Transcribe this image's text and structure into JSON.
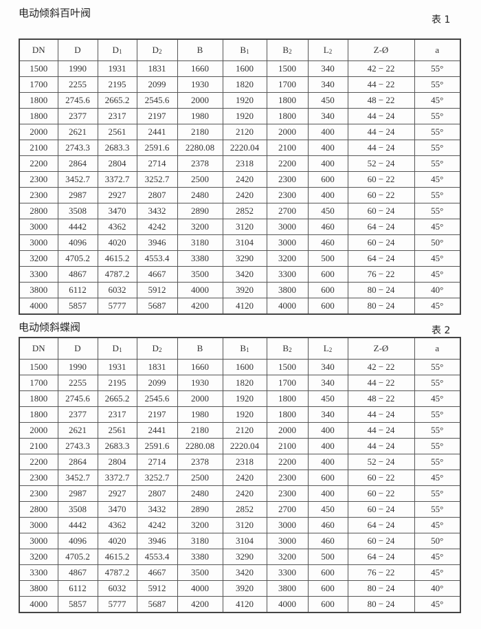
{
  "tables": [
    {
      "title": "电动倾斜百叶阀",
      "tag": "表 1",
      "headers": [
        {
          "base": "DN",
          "sub": ""
        },
        {
          "base": "D",
          "sub": ""
        },
        {
          "base": "D",
          "sub": "1"
        },
        {
          "base": "D",
          "sub": "2"
        },
        {
          "base": "B",
          "sub": ""
        },
        {
          "base": "B",
          "sub": "1"
        },
        {
          "base": "B",
          "sub": "2"
        },
        {
          "base": "L",
          "sub": "2"
        },
        {
          "base": "Z-Ø",
          "sub": ""
        },
        {
          "base": "a",
          "sub": ""
        }
      ],
      "rows": [
        [
          "1500",
          "1990",
          "1931",
          "1831",
          "1660",
          "1600",
          "1500",
          "340",
          "42 − 22",
          "55°"
        ],
        [
          "1700",
          "2255",
          "2195",
          "2099",
          "1930",
          "1820",
          "1700",
          "340",
          "44 − 22",
          "55°"
        ],
        [
          "1800",
          "2745.6",
          "2665.2",
          "2545.6",
          "2000",
          "1920",
          "1800",
          "450",
          "48 − 22",
          "45°"
        ],
        [
          "1800",
          "2377",
          "2317",
          "2197",
          "1980",
          "1920",
          "1800",
          "340",
          "44 − 24",
          "55°"
        ],
        [
          "2000",
          "2621",
          "2561",
          "2441",
          "2180",
          "2120",
          "2000",
          "400",
          "44 − 24",
          "55°"
        ],
        [
          "2100",
          "2743.3",
          "2683.3",
          "2591.6",
          "2280.08",
          "2220.04",
          "2100",
          "400",
          "44 − 24",
          "55°"
        ],
        [
          "2200",
          "2864",
          "2804",
          "2714",
          "2378",
          "2318",
          "2200",
          "400",
          "52 − 24",
          "55°"
        ],
        [
          "2300",
          "3452.7",
          "3372.7",
          "3252.7",
          "2500",
          "2420",
          "2300",
          "600",
          "60 − 22",
          "45°"
        ],
        [
          "2300",
          "2987",
          "2927",
          "2807",
          "2480",
          "2420",
          "2300",
          "400",
          "60 − 22",
          "55°"
        ],
        [
          "2800",
          "3508",
          "3470",
          "3432",
          "2890",
          "2852",
          "2700",
          "450",
          "60 − 24",
          "55°"
        ],
        [
          "3000",
          "4442",
          "4362",
          "4242",
          "3200",
          "3120",
          "3000",
          "460",
          "64 − 24",
          "45°"
        ],
        [
          "3000",
          "4096",
          "4020",
          "3946",
          "3180",
          "3104",
          "3000",
          "460",
          "60 − 24",
          "50°"
        ],
        [
          "3200",
          "4705.2",
          "4615.2",
          "4553.4",
          "3380",
          "3290",
          "3200",
          "500",
          "64 − 24",
          "45°"
        ],
        [
          "3300",
          "4867",
          "4787.2",
          "4667",
          "3500",
          "3420",
          "3300",
          "600",
          "76 − 22",
          "45°"
        ],
        [
          "3800",
          "6112",
          "6032",
          "5912",
          "4000",
          "3920",
          "3800",
          "600",
          "80 − 24",
          "40°"
        ],
        [
          "4000",
          "5857",
          "5777",
          "5687",
          "4200",
          "4120",
          "4000",
          "600",
          "80 − 24",
          "45°"
        ]
      ]
    },
    {
      "title": "电动倾斜蝶阀",
      "tag": "表 2",
      "headers": [
        {
          "base": "DN",
          "sub": ""
        },
        {
          "base": "D",
          "sub": ""
        },
        {
          "base": "D",
          "sub": "1"
        },
        {
          "base": "D",
          "sub": "2"
        },
        {
          "base": "B",
          "sub": ""
        },
        {
          "base": "B",
          "sub": "1"
        },
        {
          "base": "B",
          "sub": "2"
        },
        {
          "base": "L",
          "sub": "2"
        },
        {
          "base": "Z-Ø",
          "sub": ""
        },
        {
          "base": "a",
          "sub": ""
        }
      ],
      "rows": [
        [
          "1500",
          "1990",
          "1931",
          "1831",
          "1660",
          "1600",
          "1500",
          "340",
          "42 − 22",
          "55°"
        ],
        [
          "1700",
          "2255",
          "2195",
          "2099",
          "1930",
          "1820",
          "1700",
          "340",
          "44 − 22",
          "55°"
        ],
        [
          "1800",
          "2745.6",
          "2665.2",
          "2545.6",
          "2000",
          "1920",
          "1800",
          "450",
          "48 − 22",
          "45°"
        ],
        [
          "1800",
          "2377",
          "2317",
          "2197",
          "1980",
          "1920",
          "1800",
          "340",
          "44 − 24",
          "55°"
        ],
        [
          "2000",
          "2621",
          "2561",
          "2441",
          "2180",
          "2120",
          "2000",
          "400",
          "44 − 24",
          "55°"
        ],
        [
          "2100",
          "2743.3",
          "2683.3",
          "2591.6",
          "2280.08",
          "2220.04",
          "2100",
          "400",
          "44 − 24",
          "55°"
        ],
        [
          "2200",
          "2864",
          "2804",
          "2714",
          "2378",
          "2318",
          "2200",
          "400",
          "52 − 24",
          "55°"
        ],
        [
          "2300",
          "3452.7",
          "3372.7",
          "3252.7",
          "2500",
          "2420",
          "2300",
          "600",
          "60 − 22",
          "45°"
        ],
        [
          "2300",
          "2987",
          "2927",
          "2807",
          "2480",
          "2420",
          "2300",
          "400",
          "60 − 22",
          "55°"
        ],
        [
          "2800",
          "3508",
          "3470",
          "3432",
          "2890",
          "2852",
          "2700",
          "450",
          "60 − 24",
          "55°"
        ],
        [
          "3000",
          "4442",
          "4362",
          "4242",
          "3200",
          "3120",
          "3000",
          "460",
          "64 − 24",
          "45°"
        ],
        [
          "3000",
          "4096",
          "4020",
          "3946",
          "3180",
          "3104",
          "3000",
          "460",
          "60 − 24",
          "50°"
        ],
        [
          "3200",
          "4705.2",
          "4615.2",
          "4553.4",
          "3380",
          "3290",
          "3200",
          "500",
          "64 − 24",
          "45°"
        ],
        [
          "3300",
          "4867",
          "4787.2",
          "4667",
          "3500",
          "3420",
          "3300",
          "600",
          "76 − 22",
          "45°"
        ],
        [
          "3800",
          "6112",
          "6032",
          "5912",
          "4000",
          "3920",
          "3800",
          "600",
          "80 − 24",
          "40°"
        ],
        [
          "4000",
          "5857",
          "5777",
          "5687",
          "4200",
          "4120",
          "4000",
          "600",
          "80 − 24",
          "45°"
        ]
      ]
    }
  ]
}
